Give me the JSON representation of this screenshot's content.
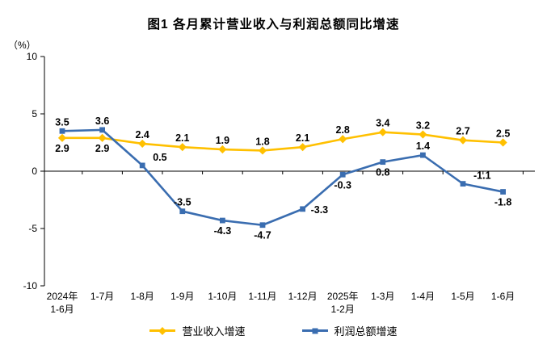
{
  "chart_data": {
    "type": "line",
    "title": "图1 各月累计营业收入与利润总额同比增速",
    "y_unit": "（%）",
    "xlabel": "",
    "ylabel": "",
    "ylim": [
      -10,
      10
    ],
    "yticks": [
      10,
      5,
      0,
      -5,
      -10
    ],
    "grid": false,
    "legend_position": "bottom",
    "categories": [
      [
        "2024年",
        "1-6月"
      ],
      [
        "1-7月"
      ],
      [
        "1-8月"
      ],
      [
        "1-9月"
      ],
      [
        "1-10月"
      ],
      [
        "1-11月"
      ],
      [
        "1-12月"
      ],
      [
        "2025年",
        "1-2月"
      ],
      [
        "1-3月"
      ],
      [
        "1-4月"
      ],
      [
        "1-5月"
      ],
      [
        "1-6月"
      ]
    ],
    "series": [
      {
        "name": "营业收入增速",
        "color": "#FFC000",
        "marker": "diamond",
        "values": [
          2.9,
          2.9,
          2.4,
          2.1,
          1.9,
          1.8,
          2.1,
          2.8,
          3.4,
          3.2,
          2.7,
          2.5
        ],
        "label_positions": [
          "below",
          "below",
          "above",
          "above",
          "above",
          "above",
          "above",
          "above",
          "above",
          "above",
          "above",
          "above"
        ]
      },
      {
        "name": "利润总额增速",
        "color": "#3A6DB0",
        "marker": "square",
        "values": [
          3.5,
          3.6,
          0.5,
          -3.5,
          -4.3,
          -4.7,
          -3.3,
          -0.3,
          0.8,
          1.4,
          -1.1,
          -1.8
        ],
        "label_positions": [
          "above",
          "above",
          "above-right",
          "above",
          "below",
          "below",
          "right",
          "below",
          "below",
          "above",
          "above-right",
          "below"
        ]
      }
    ]
  }
}
